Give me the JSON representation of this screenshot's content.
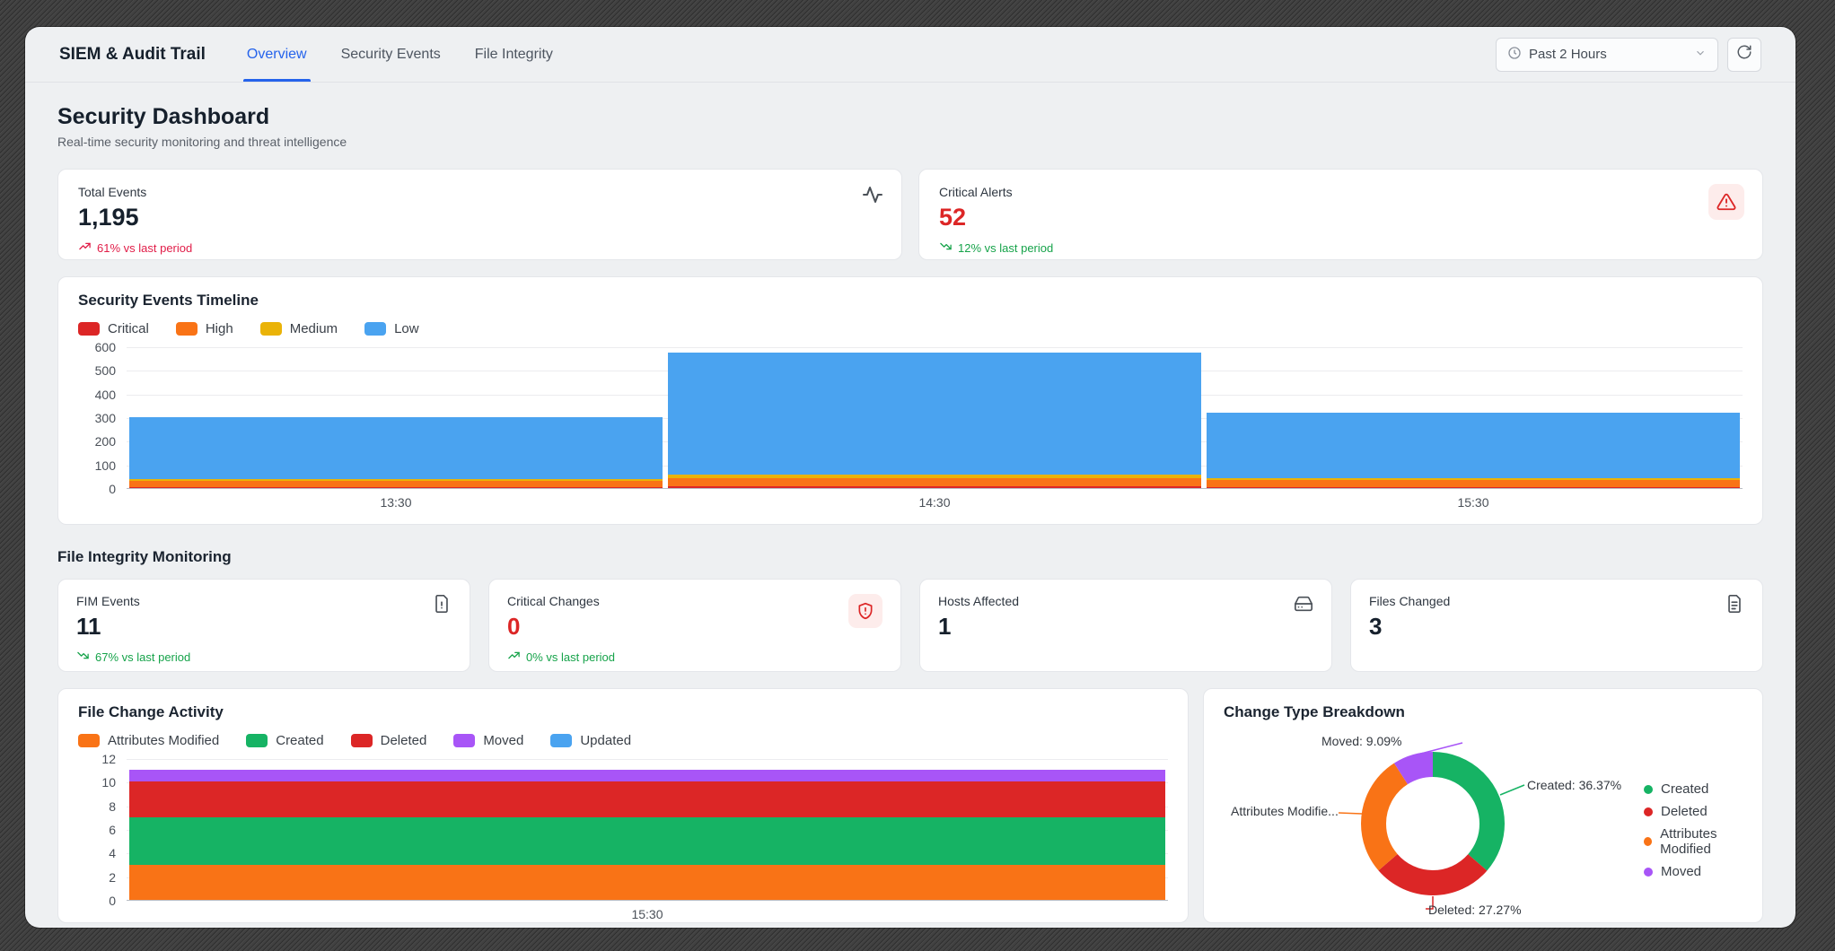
{
  "theme": {
    "accent_blue": "#2563eb",
    "critical_red": "#dc2626",
    "trend_red": "#e11d48",
    "trend_green": "#16a34a",
    "orange": "#f97316",
    "yellow": "#eab308",
    "bar_blue": "#4aa3f0",
    "green": "#16b364",
    "purple": "#a855f7",
    "page_bg": "#eef0f2"
  },
  "nav": {
    "app_title": "SIEM & Audit Trail",
    "tabs": [
      {
        "label": "Overview",
        "active": true
      },
      {
        "label": "Security Events",
        "active": false
      },
      {
        "label": "File Integrity",
        "active": false
      }
    ],
    "time_range_value": "Past 2 Hours"
  },
  "header": {
    "title": "Security Dashboard",
    "subtitle": "Real-time security monitoring and threat intelligence"
  },
  "stat_cards": [
    {
      "label": "Total Events",
      "value": "1,195",
      "trend": "61% vs last period",
      "trend_direction": "up",
      "trend_color": "#e11d48",
      "icon": "activity-icon"
    },
    {
      "label": "Critical Alerts",
      "value": "52",
      "value_color": "#dc2626",
      "trend": "12% vs last period",
      "trend_direction": "down",
      "trend_color": "#16a34a",
      "icon": "alert-triangle-icon"
    }
  ],
  "fim_section": {
    "title": "File Integrity Monitoring",
    "cards": [
      {
        "label": "FIM Events",
        "value": "11",
        "trend": "67% vs last period",
        "trend_direction": "down",
        "trend_color": "#16a34a",
        "icon": "file-alert-icon"
      },
      {
        "label": "Critical Changes",
        "value": "0",
        "value_color": "#dc2626",
        "trend": "0% vs last period",
        "trend_direction": "up",
        "trend_color": "#16a34a",
        "icon": "shield-alert-icon"
      },
      {
        "label": "Hosts Affected",
        "value": "1",
        "icon": "hard-drive-icon"
      },
      {
        "label": "Files Changed",
        "value": "3",
        "icon": "file-text-icon"
      }
    ]
  },
  "chart_data": [
    {
      "type": "bar",
      "stacked": true,
      "title": "Security Events Timeline",
      "categories": [
        "13:30",
        "14:30",
        "15:30"
      ],
      "series": [
        {
          "name": "Critical",
          "color": "#dc2626",
          "values": [
            5,
            8,
            5
          ]
        },
        {
          "name": "High",
          "color": "#f97316",
          "values": [
            25,
            35,
            28
          ]
        },
        {
          "name": "Medium",
          "color": "#eab308",
          "values": [
            8,
            15,
            10
          ]
        },
        {
          "name": "Low",
          "color": "#4aa3f0",
          "values": [
            262,
            517,
            277
          ]
        }
      ],
      "totals": [
        300,
        575,
        320
      ],
      "ylim": [
        0,
        600
      ],
      "yticks": [
        0,
        100,
        200,
        300,
        400,
        500,
        600
      ],
      "grid": true,
      "legend_position": "top"
    },
    {
      "type": "bar",
      "stacked": true,
      "title": "File Change Activity",
      "categories": [
        "15:30"
      ],
      "series": [
        {
          "name": "Attributes Modified",
          "color": "#f97316",
          "values": [
            3
          ]
        },
        {
          "name": "Created",
          "color": "#16b364",
          "values": [
            4
          ]
        },
        {
          "name": "Deleted",
          "color": "#dc2626",
          "values": [
            3
          ]
        },
        {
          "name": "Moved",
          "color": "#a855f7",
          "values": [
            1
          ]
        },
        {
          "name": "Updated",
          "color": "#4aa3f0",
          "values": [
            0
          ]
        }
      ],
      "totals": [
        11
      ],
      "ylim": [
        0,
        12
      ],
      "yticks": [
        0,
        2,
        4,
        6,
        8,
        10,
        12
      ],
      "grid": true,
      "legend_position": "top"
    },
    {
      "type": "pie",
      "title": "Change Type Breakdown",
      "slices": [
        {
          "name": "Created",
          "pct": 36.37,
          "count": 4,
          "color": "#16b364",
          "label": "Created: 36.37%"
        },
        {
          "name": "Deleted",
          "pct": 27.27,
          "count": 3,
          "color": "#dc2626",
          "label": "Deleted: 27.27%"
        },
        {
          "name": "Attributes Modified",
          "pct": 27.27,
          "count": 3,
          "color": "#f97316",
          "label": "Attributes Modifie..."
        },
        {
          "name": "Moved",
          "pct": 9.09,
          "count": 1,
          "color": "#a855f7",
          "label": "Moved: 9.09%"
        }
      ],
      "legend": [
        "Created",
        "Deleted",
        "Attributes Modified",
        "Moved"
      ],
      "legend_position": "right"
    }
  ]
}
